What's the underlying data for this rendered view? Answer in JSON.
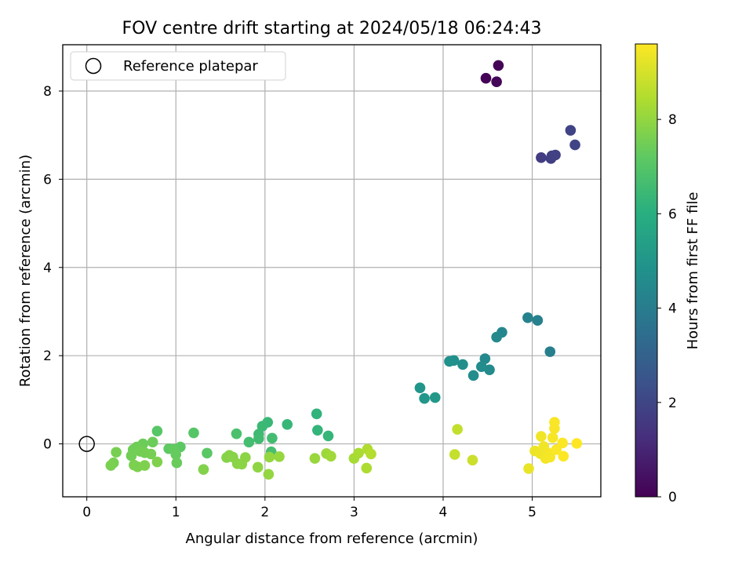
{
  "chart_data": {
    "type": "scatter",
    "title": "FOV centre drift starting at 2024/05/18 06:24:43",
    "xlabel": "Angular distance from reference (arcmin)",
    "ylabel": "Rotation from reference (arcmin)",
    "xlim": [
      -0.27,
      5.77
    ],
    "ylim": [
      -1.2,
      9.05
    ],
    "xticks": [
      0,
      1,
      2,
      3,
      4,
      5
    ],
    "yticks": [
      0,
      2,
      4,
      6,
      8
    ],
    "grid": true,
    "legend": {
      "placement": "top-left",
      "entries": [
        "Reference platepar"
      ]
    },
    "reference_point": {
      "x": 0,
      "y": 0
    },
    "colorbar": {
      "label": "Hours from first FF file",
      "colormap": "viridis",
      "range": [
        0,
        9.6
      ],
      "ticks": [
        0,
        2,
        4,
        6,
        8
      ]
    },
    "points": [
      {
        "x": 4.48,
        "y": 8.29,
        "hours": 0.05
      },
      {
        "x": 4.62,
        "y": 8.58,
        "hours": 0.1
      },
      {
        "x": 4.6,
        "y": 8.21,
        "hours": 0.15
      },
      {
        "x": 5.1,
        "y": 6.49,
        "hours": 1.7
      },
      {
        "x": 5.21,
        "y": 6.47,
        "hours": 1.75
      },
      {
        "x": 5.22,
        "y": 6.53,
        "hours": 1.8
      },
      {
        "x": 5.26,
        "y": 6.55,
        "hours": 1.85
      },
      {
        "x": 5.43,
        "y": 7.11,
        "hours": 1.9
      },
      {
        "x": 5.48,
        "y": 6.78,
        "hours": 1.95
      },
      {
        "x": 4.95,
        "y": 2.86,
        "hours": 4.2
      },
      {
        "x": 5.06,
        "y": 2.8,
        "hours": 4.15
      },
      {
        "x": 5.2,
        "y": 2.09,
        "hours": 4.1
      },
      {
        "x": 4.66,
        "y": 2.53,
        "hours": 4.4
      },
      {
        "x": 4.6,
        "y": 2.42,
        "hours": 4.45
      },
      {
        "x": 4.47,
        "y": 1.93,
        "hours": 4.5
      },
      {
        "x": 4.52,
        "y": 1.68,
        "hours": 4.55
      },
      {
        "x": 4.43,
        "y": 1.75,
        "hours": 4.6
      },
      {
        "x": 4.34,
        "y": 1.55,
        "hours": 4.65
      },
      {
        "x": 4.22,
        "y": 1.8,
        "hours": 4.7
      },
      {
        "x": 4.12,
        "y": 1.89,
        "hours": 4.75
      },
      {
        "x": 4.07,
        "y": 1.87,
        "hours": 4.8
      },
      {
        "x": 3.74,
        "y": 1.27,
        "hours": 5.0
      },
      {
        "x": 3.79,
        "y": 1.03,
        "hours": 5.05
      },
      {
        "x": 3.91,
        "y": 1.05,
        "hours": 5.1
      },
      {
        "x": 2.58,
        "y": 0.68,
        "hours": 6.2
      },
      {
        "x": 2.59,
        "y": 0.31,
        "hours": 6.25
      },
      {
        "x": 2.71,
        "y": 0.18,
        "hours": 6.3
      },
      {
        "x": 2.25,
        "y": 0.44,
        "hours": 6.35
      },
      {
        "x": 2.03,
        "y": 0.49,
        "hours": 6.4
      },
      {
        "x": 1.97,
        "y": 0.4,
        "hours": 6.45
      },
      {
        "x": 1.93,
        "y": 0.22,
        "hours": 6.5
      },
      {
        "x": 1.93,
        "y": 0.12,
        "hours": 6.55
      },
      {
        "x": 2.08,
        "y": 0.13,
        "hours": 6.6
      },
      {
        "x": 1.82,
        "y": 0.04,
        "hours": 6.65
      },
      {
        "x": 2.07,
        "y": -0.18,
        "hours": 6.7
      },
      {
        "x": 1.68,
        "y": 0.23,
        "hours": 6.8
      },
      {
        "x": 1.2,
        "y": 0.25,
        "hours": 7.0
      },
      {
        "x": 0.79,
        "y": 0.29,
        "hours": 7.05
      },
      {
        "x": 1.35,
        "y": -0.21,
        "hours": 7.1
      },
      {
        "x": 1.05,
        "y": -0.07,
        "hours": 7.15
      },
      {
        "x": 0.92,
        "y": -0.11,
        "hours": 7.2
      },
      {
        "x": 0.98,
        "y": -0.12,
        "hours": 7.25
      },
      {
        "x": 1.0,
        "y": -0.24,
        "hours": 7.3
      },
      {
        "x": 1.01,
        "y": -0.43,
        "hours": 7.35
      },
      {
        "x": 0.74,
        "y": 0.04,
        "hours": 7.4
      },
      {
        "x": 0.63,
        "y": 0.0,
        "hours": 7.42
      },
      {
        "x": 0.56,
        "y": -0.07,
        "hours": 7.45
      },
      {
        "x": 0.52,
        "y": -0.13,
        "hours": 7.48
      },
      {
        "x": 0.5,
        "y": -0.27,
        "hours": 7.5
      },
      {
        "x": 0.6,
        "y": -0.17,
        "hours": 7.52
      },
      {
        "x": 0.65,
        "y": -0.2,
        "hours": 7.54
      },
      {
        "x": 0.72,
        "y": -0.23,
        "hours": 7.56
      },
      {
        "x": 0.33,
        "y": -0.19,
        "hours": 7.58
      },
      {
        "x": 0.3,
        "y": -0.43,
        "hours": 7.6
      },
      {
        "x": 0.27,
        "y": -0.49,
        "hours": 7.62
      },
      {
        "x": 0.53,
        "y": -0.48,
        "hours": 7.64
      },
      {
        "x": 0.57,
        "y": -0.52,
        "hours": 7.66
      },
      {
        "x": 0.65,
        "y": -0.49,
        "hours": 7.68
      },
      {
        "x": 0.79,
        "y": -0.41,
        "hours": 7.7
      },
      {
        "x": 1.31,
        "y": -0.58,
        "hours": 7.75
      },
      {
        "x": 1.57,
        "y": -0.31,
        "hours": 7.8
      },
      {
        "x": 1.6,
        "y": -0.26,
        "hours": 7.82
      },
      {
        "x": 1.64,
        "y": -0.3,
        "hours": 7.84
      },
      {
        "x": 1.69,
        "y": -0.45,
        "hours": 7.86
      },
      {
        "x": 1.74,
        "y": -0.46,
        "hours": 7.88
      },
      {
        "x": 1.78,
        "y": -0.31,
        "hours": 7.9
      },
      {
        "x": 1.92,
        "y": -0.53,
        "hours": 7.95
      },
      {
        "x": 2.04,
        "y": -0.69,
        "hours": 8.0
      },
      {
        "x": 2.05,
        "y": -0.3,
        "hours": 8.02
      },
      {
        "x": 2.16,
        "y": -0.29,
        "hours": 8.05
      },
      {
        "x": 2.56,
        "y": -0.33,
        "hours": 8.1
      },
      {
        "x": 2.69,
        "y": -0.22,
        "hours": 8.15
      },
      {
        "x": 2.74,
        "y": -0.28,
        "hours": 8.2
      },
      {
        "x": 3.0,
        "y": -0.33,
        "hours": 8.3
      },
      {
        "x": 3.05,
        "y": -0.21,
        "hours": 8.35
      },
      {
        "x": 3.14,
        "y": -0.55,
        "hours": 8.4
      },
      {
        "x": 3.15,
        "y": -0.12,
        "hours": 8.45
      },
      {
        "x": 3.19,
        "y": -0.23,
        "hours": 8.5
      },
      {
        "x": 4.16,
        "y": 0.33,
        "hours": 8.7
      },
      {
        "x": 4.13,
        "y": -0.24,
        "hours": 8.75
      },
      {
        "x": 4.33,
        "y": -0.37,
        "hours": 8.85
      },
      {
        "x": 4.96,
        "y": -0.56,
        "hours": 9.3
      },
      {
        "x": 5.03,
        "y": -0.16,
        "hours": 9.35
      },
      {
        "x": 5.09,
        "y": -0.22,
        "hours": 9.38
      },
      {
        "x": 5.1,
        "y": 0.17,
        "hours": 9.4
      },
      {
        "x": 5.13,
        "y": -0.06,
        "hours": 9.42
      },
      {
        "x": 5.15,
        "y": -0.33,
        "hours": 9.44
      },
      {
        "x": 5.18,
        "y": -0.21,
        "hours": 9.46
      },
      {
        "x": 5.2,
        "y": -0.3,
        "hours": 9.48
      },
      {
        "x": 5.23,
        "y": 0.14,
        "hours": 9.5
      },
      {
        "x": 5.25,
        "y": 0.35,
        "hours": 9.52
      },
      {
        "x": 5.25,
        "y": 0.49,
        "hours": 9.54
      },
      {
        "x": 5.27,
        "y": -0.13,
        "hours": 9.56
      },
      {
        "x": 5.34,
        "y": 0.02,
        "hours": 9.57
      },
      {
        "x": 5.35,
        "y": -0.28,
        "hours": 9.58
      },
      {
        "x": 5.5,
        "y": 0.01,
        "hours": 9.6
      }
    ]
  }
}
